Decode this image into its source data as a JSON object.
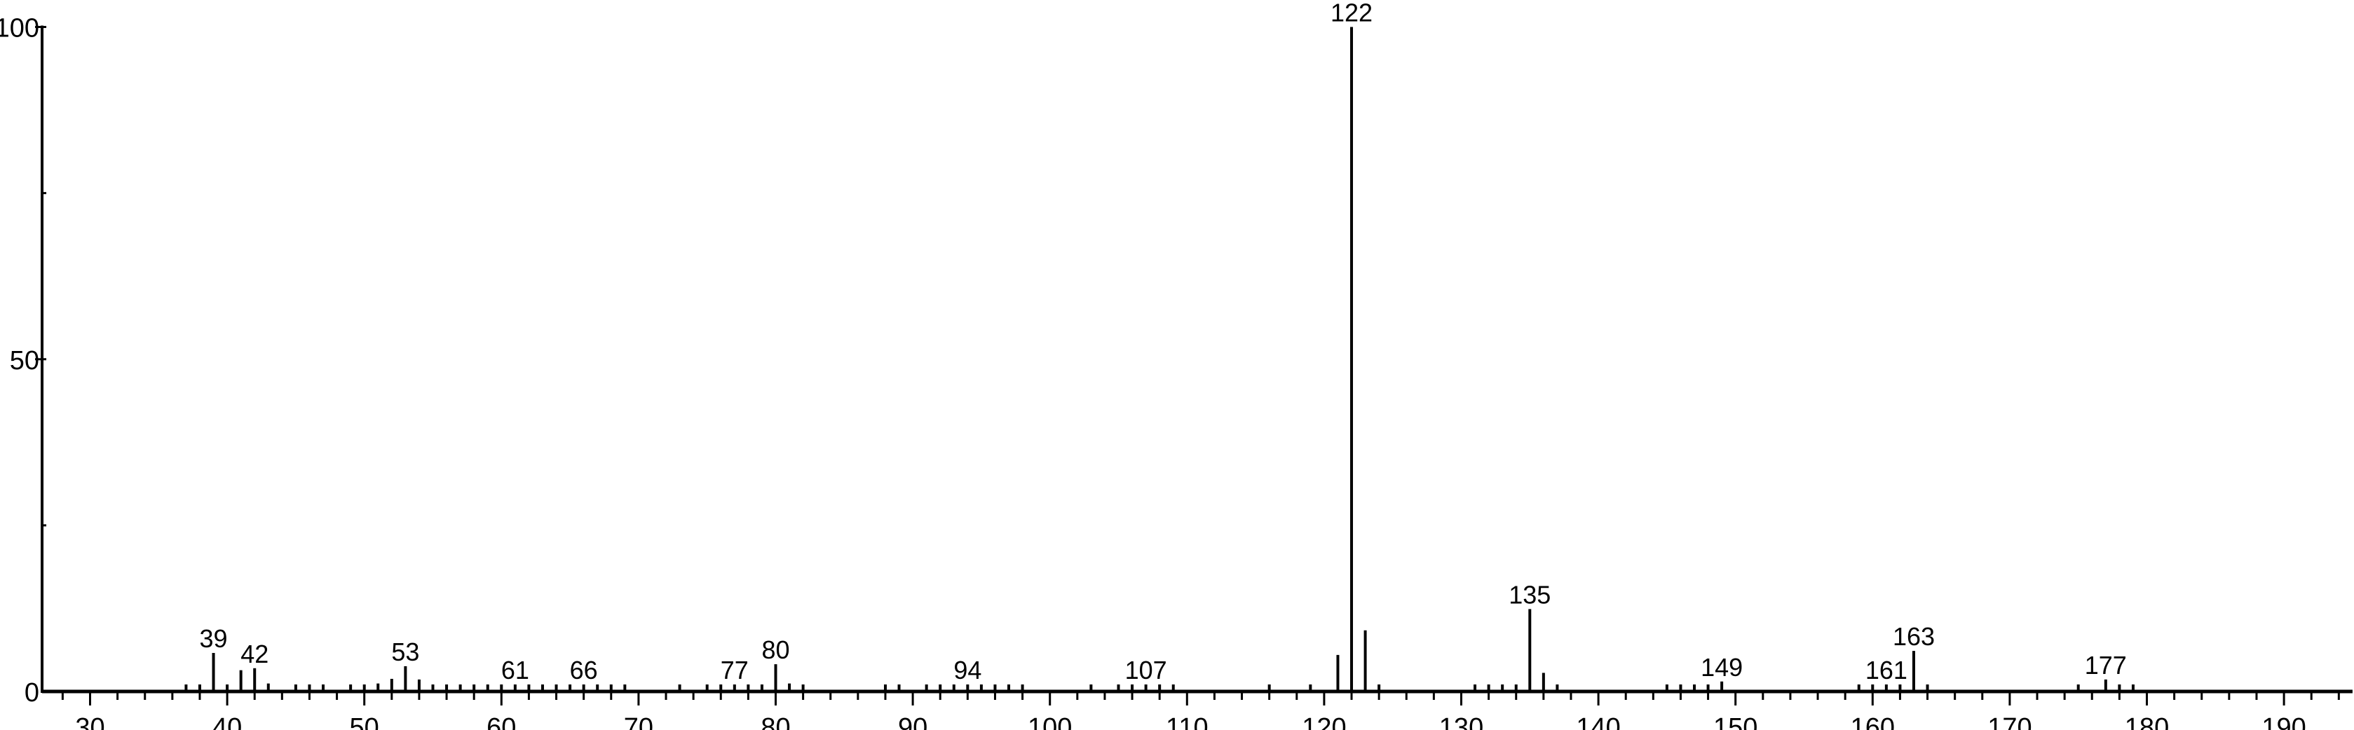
{
  "chart_data": {
    "type": "bar",
    "title": "",
    "xlabel": "",
    "ylabel": "",
    "xlim": [
      26.5,
      195
    ],
    "ylim": [
      0,
      100
    ],
    "x_ticks": [
      30,
      40,
      50,
      60,
      70,
      80,
      90,
      100,
      110,
      120,
      130,
      140,
      150,
      160,
      170,
      180,
      190
    ],
    "y_ticks": [
      0,
      50,
      100
    ],
    "grid": false,
    "peaks": [
      {
        "x": 37,
        "y": 0.5
      },
      {
        "x": 38,
        "y": 0.5
      },
      {
        "x": 39,
        "y": 5.8,
        "label": "39"
      },
      {
        "x": 40,
        "y": 0.9
      },
      {
        "x": 41,
        "y": 3.2
      },
      {
        "x": 42,
        "y": 3.5,
        "label": "42"
      },
      {
        "x": 43,
        "y": 1.2
      },
      {
        "x": 45,
        "y": 0.5
      },
      {
        "x": 46,
        "y": 0.5
      },
      {
        "x": 47,
        "y": 0.5
      },
      {
        "x": 49,
        "y": 0.5
      },
      {
        "x": 50,
        "y": 0.6
      },
      {
        "x": 51,
        "y": 1.2
      },
      {
        "x": 52,
        "y": 1.9
      },
      {
        "x": 53,
        "y": 3.8,
        "label": "53"
      },
      {
        "x": 54,
        "y": 1.8
      },
      {
        "x": 55,
        "y": 0.8
      },
      {
        "x": 56,
        "y": 0.5
      },
      {
        "x": 57,
        "y": 0.5
      },
      {
        "x": 58,
        "y": 0.5
      },
      {
        "x": 59,
        "y": 0.5
      },
      {
        "x": 60,
        "y": 0.5
      },
      {
        "x": 61,
        "y": 0.5,
        "label": "61"
      },
      {
        "x": 62,
        "y": 0.5
      },
      {
        "x": 63,
        "y": 0.5
      },
      {
        "x": 64,
        "y": 0.5
      },
      {
        "x": 65,
        "y": 0.5
      },
      {
        "x": 66,
        "y": 0.8,
        "label": "66"
      },
      {
        "x": 67,
        "y": 0.5
      },
      {
        "x": 68,
        "y": 0.5
      },
      {
        "x": 69,
        "y": 0.5
      },
      {
        "x": 73,
        "y": 0.5
      },
      {
        "x": 75,
        "y": 0.5
      },
      {
        "x": 76,
        "y": 0.5
      },
      {
        "x": 77,
        "y": 0.6,
        "label": "77"
      },
      {
        "x": 78,
        "y": 0.5
      },
      {
        "x": 79,
        "y": 0.6
      },
      {
        "x": 80,
        "y": 4.1,
        "label": "80"
      },
      {
        "x": 81,
        "y": 1.2
      },
      {
        "x": 82,
        "y": 0.5
      },
      {
        "x": 88,
        "y": 0.5
      },
      {
        "x": 89,
        "y": 0.5
      },
      {
        "x": 91,
        "y": 0.5
      },
      {
        "x": 92,
        "y": 0.5
      },
      {
        "x": 93,
        "y": 0.5
      },
      {
        "x": 94,
        "y": 0.8,
        "label": "94"
      },
      {
        "x": 95,
        "y": 0.5
      },
      {
        "x": 96,
        "y": 0.5
      },
      {
        "x": 97,
        "y": 0.5
      },
      {
        "x": 98,
        "y": 0.5
      },
      {
        "x": 103,
        "y": 0.5
      },
      {
        "x": 105,
        "y": 0.5
      },
      {
        "x": 106,
        "y": 0.5
      },
      {
        "x": 107,
        "y": 0.8,
        "label": "107"
      },
      {
        "x": 108,
        "y": 0.8
      },
      {
        "x": 109,
        "y": 0.5
      },
      {
        "x": 116,
        "y": 0.5
      },
      {
        "x": 119,
        "y": 0.5
      },
      {
        "x": 121,
        "y": 5.5
      },
      {
        "x": 122,
        "y": 100,
        "label": "122"
      },
      {
        "x": 123,
        "y": 9.2
      },
      {
        "x": 124,
        "y": 0.5
      },
      {
        "x": 131,
        "y": 0.5
      },
      {
        "x": 132,
        "y": 0.6
      },
      {
        "x": 133,
        "y": 0.5
      },
      {
        "x": 134,
        "y": 0.6
      },
      {
        "x": 135,
        "y": 12.4,
        "label": "135"
      },
      {
        "x": 136,
        "y": 2.8
      },
      {
        "x": 137,
        "y": 0.5
      },
      {
        "x": 145,
        "y": 0.5
      },
      {
        "x": 146,
        "y": 0.5
      },
      {
        "x": 147,
        "y": 0.8
      },
      {
        "x": 148,
        "y": 0.5
      },
      {
        "x": 149,
        "y": 1.5,
        "label": "149"
      },
      {
        "x": 159,
        "y": 0.5
      },
      {
        "x": 160,
        "y": 0.5
      },
      {
        "x": 161,
        "y": 0.5,
        "label": "161"
      },
      {
        "x": 162,
        "y": 0.6
      },
      {
        "x": 163,
        "y": 6.1,
        "label": "163"
      },
      {
        "x": 164,
        "y": 0.5
      },
      {
        "x": 175,
        "y": 0.5
      },
      {
        "x": 177,
        "y": 1.8,
        "label": "177"
      },
      {
        "x": 178,
        "y": 0.8
      },
      {
        "x": 179,
        "y": 0.5
      }
    ]
  }
}
